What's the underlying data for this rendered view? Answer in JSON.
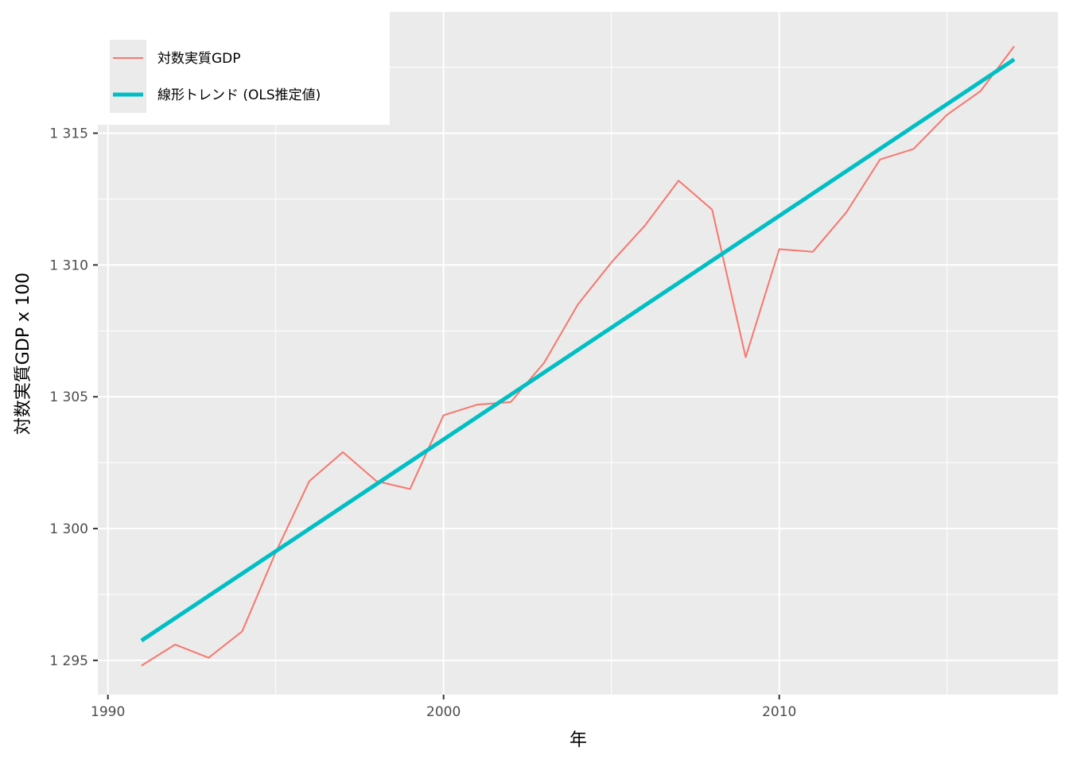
{
  "chart_data": {
    "type": "line",
    "xlabel": "年",
    "ylabel": "対数実質GDP x 100",
    "xlim": [
      1989.7,
      2018.3
    ],
    "ylim": [
      1293.7,
      1319.6
    ],
    "x_ticks": [
      1990,
      2000,
      2010
    ],
    "x_tick_labels": [
      "1990",
      "2000",
      "2010"
    ],
    "x_minor_ticks": [
      1995,
      2005,
      2015
    ],
    "y_ticks": [
      1295,
      1300,
      1305,
      1310,
      1315
    ],
    "y_tick_labels": [
      "1 295",
      "1 300",
      "1 305",
      "1 310",
      "1 315"
    ],
    "y_minor_ticks": [
      1297.5,
      1302.5,
      1307.5,
      1312.5,
      1317.5
    ],
    "grid": true,
    "legend_position": "top-left",
    "x": [
      1991,
      1992,
      1993,
      1994,
      1995,
      1996,
      1997,
      1998,
      1999,
      2000,
      2001,
      2002,
      2003,
      2004,
      2005,
      2006,
      2007,
      2008,
      2009,
      2010,
      2011,
      2012,
      2013,
      2014,
      2015,
      2016,
      2017
    ],
    "series": [
      {
        "name": "対数実質GDP",
        "color": "#F8766D",
        "values": [
          1294.8,
          1295.6,
          1295.1,
          1296.1,
          1299.1,
          1301.8,
          1302.9,
          1301.8,
          1301.5,
          1304.3,
          1304.7,
          1304.8,
          1306.3,
          1308.5,
          1310.1,
          1311.5,
          1313.2,
          1312.1,
          1306.5,
          1310.6,
          1310.5,
          1312.0,
          1314.0,
          1314.4,
          1315.7,
          1316.6,
          1318.3
        ]
      },
      {
        "name": "線形トレンド (OLS推定値)",
        "color": "#00BFC4",
        "x": [
          1991,
          2017
        ],
        "values": [
          1295.75,
          1317.8
        ]
      }
    ]
  }
}
